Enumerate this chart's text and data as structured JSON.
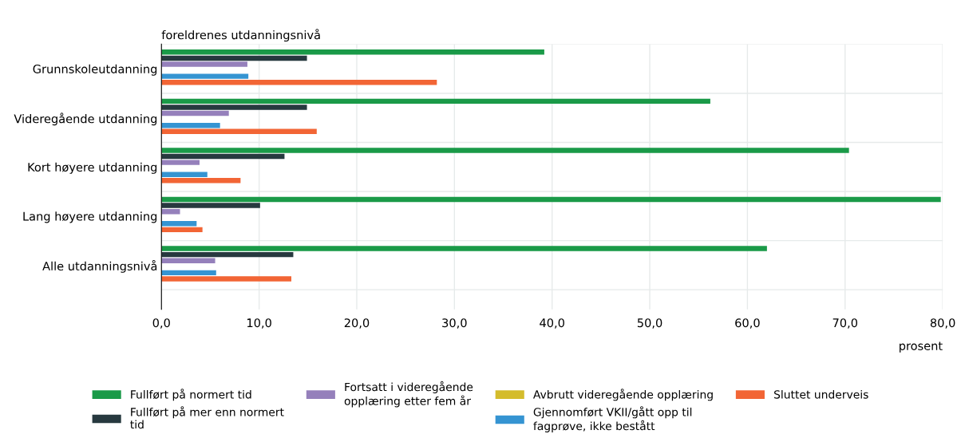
{
  "chart_data": {
    "type": "bar",
    "orientation": "horizontal",
    "ylabel": "foreldrenes utdanningsnivå",
    "xlabel": "prosent",
    "categories": [
      "Grunnskoleutdanning",
      "Videregående utdanning",
      "Kort høyere utdanning",
      "Lang høyere utdanning",
      "Alle utdanningsnivå"
    ],
    "series": [
      {
        "name": "Fullført på normert tid",
        "color": "#1a9a48",
        "values": [
          39.2,
          56.2,
          70.4,
          79.8,
          62.0
        ]
      },
      {
        "name": "Fullført på mer enn normert tid",
        "color": "#27393f",
        "values": [
          14.9,
          14.9,
          12.6,
          10.1,
          13.5
        ]
      },
      {
        "name": "Fortsatt i videregående opplæring etter fem år",
        "color": "#9580bb",
        "values": [
          8.8,
          6.9,
          3.9,
          1.9,
          5.5
        ]
      },
      {
        "name": "Avbrutt videregående opplæring",
        "color": "#d4bc2c",
        "values": [
          null,
          null,
          null,
          null,
          null
        ]
      },
      {
        "name": "Gjennomført VKII/gått opp til fagprøve, ikke bestått",
        "color": "#3594d2",
        "values": [
          8.9,
          6.0,
          4.7,
          3.6,
          5.6
        ]
      },
      {
        "name": "Sluttet underveis",
        "color": "#f26535",
        "values": [
          28.2,
          15.9,
          8.1,
          4.2,
          13.3
        ]
      }
    ],
    "xlim": [
      0,
      80
    ],
    "xticks": [
      {
        "value": 0,
        "label": "0,0"
      },
      {
        "value": 10,
        "label": "10,0"
      },
      {
        "value": 20,
        "label": "20,0"
      },
      {
        "value": 30,
        "label": "30,0"
      },
      {
        "value": 40,
        "label": "40,0"
      },
      {
        "value": 50,
        "label": "50,0"
      },
      {
        "value": 60,
        "label": "60,0"
      },
      {
        "value": 70,
        "label": "70,0"
      },
      {
        "value": 80,
        "label": "80,0"
      }
    ],
    "grid": true,
    "legend": "bottom"
  }
}
